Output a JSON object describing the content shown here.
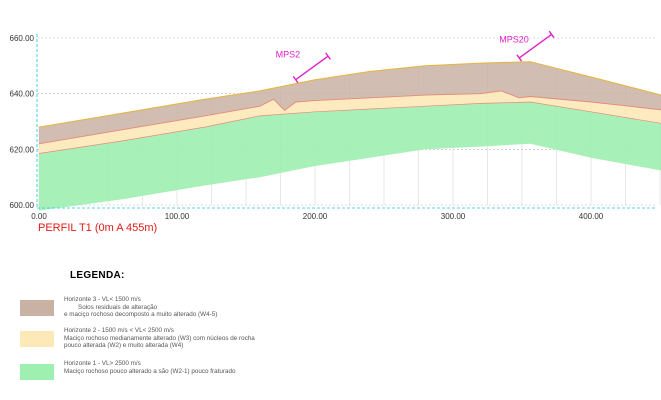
{
  "profile": {
    "title": "PERFIL T1 (0m A 455m)",
    "colors": {
      "h3": "#c9b2a4",
      "h2": "#fde8b8",
      "h1": "#9df0b0",
      "ground_line": "#e6b63a",
      "boundary_line": "#e58a7c",
      "grid": "#bbbbbb",
      "axis": "#1ec8d8",
      "probe": "#e020c8",
      "title": "#e21a1a"
    },
    "probes": [
      {
        "label": "MPS2"
      },
      {
        "label": "MPS20"
      }
    ]
  },
  "chart_data": {
    "type": "area",
    "x_ticks": [
      "0.00",
      "100.00",
      "200.00",
      "300.00",
      "400.00"
    ],
    "y_ticks": [
      "660.00",
      "640.00",
      "620.00",
      "600.00"
    ],
    "xlim": [
      0,
      455
    ],
    "ylim": [
      600,
      660
    ],
    "probes": [
      {
        "label": "MPS2",
        "x": 186
      },
      {
        "label": "MPS20",
        "x": 348
      }
    ],
    "surfaces": {
      "terrain": {
        "x": [
          0,
          60,
          120,
          160,
          200,
          240,
          280,
          320,
          356,
          400,
          455
        ],
        "y": [
          628,
          633,
          638,
          641,
          645,
          648,
          650,
          651,
          651.5,
          646,
          639
        ]
      },
      "h3_base": {
        "x": [
          0,
          60,
          120,
          160,
          170,
          178,
          186,
          200,
          240,
          280,
          320,
          335,
          348,
          356,
          400,
          455
        ],
        "y": [
          622,
          627,
          632,
          635.5,
          638,
          634,
          637,
          637.5,
          638.5,
          639.5,
          640,
          641,
          638.5,
          639,
          637,
          634
        ]
      },
      "h2_base": {
        "x": [
          0,
          60,
          120,
          160,
          200,
          240,
          280,
          320,
          356,
          400,
          455
        ],
        "y": [
          618.5,
          623,
          628,
          632,
          633.5,
          634.5,
          635.5,
          636.5,
          637,
          633.5,
          629
        ]
      },
      "h1_base": {
        "x": [
          0,
          60,
          120,
          160,
          200,
          240,
          280,
          320,
          356,
          400,
          455
        ],
        "y": [
          598,
          602,
          607,
          610,
          614,
          617,
          620,
          621,
          622,
          617,
          612
        ]
      }
    },
    "series": [
      {
        "name": "Horizonte 3",
        "layer": "h3"
      },
      {
        "name": "Horizonte 2",
        "layer": "h2"
      },
      {
        "name": "Horizonte 1",
        "layer": "h1"
      }
    ]
  },
  "legend": {
    "title": "LEGENDA:",
    "items": [
      {
        "color": "#c9b2a4",
        "lines": [
          "Horizonte 3 - VL< 1500 m/s",
          "Solos residuais de alteração",
          "e maciço rochoso decomposto a muito alterado (W4-5)"
        ]
      },
      {
        "color": "#fde8b8",
        "lines": [
          "Horizonte 2 - 1500 m/s < VL< 2500 m/s",
          "Maciço rochoso medianamente alterado (W3)  com núcleos de rocha",
          "pouco alterada (W2) e muito alterada (W4)"
        ]
      },
      {
        "color": "#9df0b0",
        "lines": [
          "Horizonte 1 - VL> 2500 m/s",
          "Maciço rochoso pouco alterado a são (W2-1) pouco fraturado"
        ]
      }
    ]
  }
}
